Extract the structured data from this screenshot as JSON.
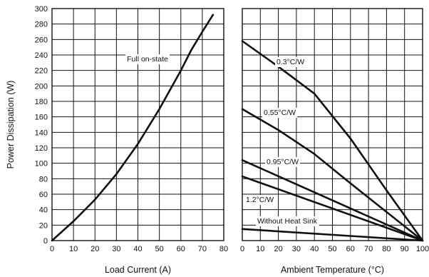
{
  "chart_data": [
    {
      "type": "line",
      "xlabel": "Load Current (A)",
      "ylabel": "Power Dissipation (W)",
      "xlim": [
        0,
        80
      ],
      "ylim": [
        0,
        300
      ],
      "xticks": [
        0,
        10,
        20,
        30,
        40,
        50,
        60,
        70,
        80
      ],
      "yticks": [
        0,
        20,
        40,
        60,
        80,
        100,
        120,
        140,
        160,
        180,
        200,
        220,
        240,
        260,
        280,
        300
      ],
      "grid": true,
      "series": [
        {
          "name": "Full on-state",
          "x": [
            0,
            10,
            20,
            30,
            40,
            50,
            60,
            65,
            70,
            75
          ],
          "y": [
            0,
            25,
            53,
            86,
            125,
            170,
            220,
            247,
            270,
            292
          ]
        }
      ]
    },
    {
      "type": "line",
      "xlabel": "Ambient Temperature (°C)",
      "xlim": [
        0,
        100
      ],
      "ylim": [
        0,
        300
      ],
      "xticks": [
        0,
        10,
        20,
        30,
        40,
        50,
        60,
        70,
        80,
        90,
        100
      ],
      "yticks": [
        0,
        20,
        40,
        60,
        80,
        100,
        120,
        140,
        160,
        180,
        200,
        220,
        240,
        260,
        280,
        300
      ],
      "grid": true,
      "series": [
        {
          "name": "0.3°C/W",
          "x": [
            0,
            20,
            40,
            60,
            80,
            100
          ],
          "y": [
            258,
            225,
            190,
            132,
            65,
            0
          ]
        },
        {
          "name": "0.55°C/W",
          "x": [
            0,
            20,
            40,
            60,
            80,
            100
          ],
          "y": [
            170,
            143,
            112,
            74,
            37,
            0
          ]
        },
        {
          "name": "0.95°C/W",
          "x": [
            0,
            100
          ],
          "y": [
            104,
            0
          ]
        },
        {
          "name": "1.2°C/W",
          "x": [
            0,
            100
          ],
          "y": [
            83,
            0
          ]
        },
        {
          "name": "Without Heat Sink",
          "x": [
            0,
            100
          ],
          "y": [
            15,
            0
          ]
        }
      ]
    }
  ]
}
